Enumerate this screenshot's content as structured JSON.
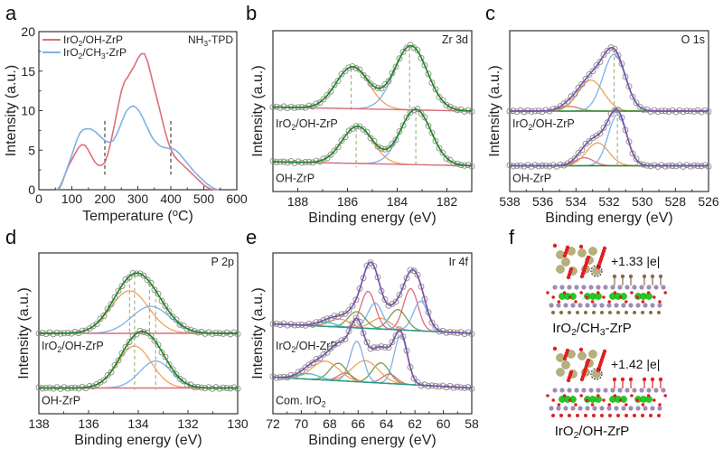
{
  "figure": {
    "panels": [
      "a",
      "b",
      "c",
      "d",
      "e",
      "f"
    ]
  },
  "chart_data": [
    {
      "id": "a",
      "type": "line",
      "title": "",
      "annotation": "NH3-TPD",
      "annotation_sub": {
        "pre": "NH",
        "sub": "3",
        "post": "-TPD"
      },
      "xlabel": "Temperature (oC)",
      "xlabel_parts": {
        "pre": "Temperature (",
        "sup": "o",
        "post": "C)"
      },
      "ylabel": "Intensity (a.u.)",
      "xlim": [
        0,
        600
      ],
      "ylim": [
        0,
        20
      ],
      "xticks": [
        0,
        100,
        200,
        300,
        400,
        500,
        600
      ],
      "yticks": [
        0,
        5,
        10,
        15,
        20
      ],
      "legend_position": "top-left",
      "vlines": [
        200,
        400
      ],
      "series": [
        {
          "name": "IrO2/OH-ZrP",
          "name_parts": {
            "pre": "IrO",
            "sub": "2",
            "post": "/OH-ZrP"
          },
          "color": "#d9707a",
          "x": [
            60,
            70,
            80,
            90,
            100,
            110,
            120,
            130,
            140,
            150,
            160,
            170,
            180,
            190,
            200,
            210,
            220,
            230,
            240,
            250,
            260,
            270,
            280,
            290,
            300,
            310,
            320,
            330,
            340,
            350,
            360,
            370,
            380,
            390,
            400,
            410,
            420,
            430,
            440,
            450,
            460,
            470,
            480,
            490,
            500,
            510,
            520,
            530,
            540
          ],
          "y": [
            0,
            0.8,
            2.0,
            3.0,
            3.8,
            4.6,
            5.3,
            5.7,
            5.6,
            5.0,
            4.2,
            3.5,
            3.1,
            3.1,
            3.4,
            4.6,
            6.4,
            8.4,
            10.5,
            12.5,
            13.7,
            14.3,
            15.0,
            15.7,
            16.6,
            17.2,
            17.2,
            16.2,
            14.5,
            12.8,
            11.2,
            9.5,
            7.8,
            6.3,
            5.1,
            4.3,
            3.8,
            3.4,
            3.0,
            2.6,
            2.2,
            1.8,
            1.4,
            1.0,
            0.6,
            0.3,
            0.1,
            0.0,
            0.0
          ]
        },
        {
          "name": "IrO2/CH3-ZrP",
          "name_parts": {
            "pre": "IrO",
            "sub": "2",
            "post": "/CH",
            "sub2": "3",
            "post2": "-ZrP"
          },
          "color": "#7fb0e6",
          "x": [
            55,
            65,
            75,
            85,
            95,
            105,
            115,
            125,
            135,
            145,
            155,
            165,
            175,
            185,
            195,
            205,
            215,
            225,
            235,
            245,
            255,
            265,
            275,
            285,
            295,
            305,
            315,
            325,
            335,
            345,
            355,
            365,
            375,
            385,
            395,
            405,
            415,
            425,
            435,
            445,
            455,
            465,
            475,
            485,
            495,
            505,
            515,
            525,
            535,
            545
          ],
          "y": [
            0,
            0.5,
            1.5,
            2.6,
            3.8,
            5.0,
            6.3,
            7.2,
            7.6,
            7.7,
            7.7,
            7.5,
            7.2,
            6.8,
            6.4,
            6.1,
            6.0,
            6.2,
            6.9,
            7.9,
            9.0,
            9.9,
            10.4,
            10.6,
            10.4,
            9.9,
            9.1,
            8.2,
            7.3,
            6.5,
            6.0,
            5.6,
            5.4,
            5.3,
            5.2,
            5.2,
            5.0,
            4.6,
            4.1,
            3.6,
            3.1,
            2.6,
            2.1,
            1.7,
            1.3,
            0.9,
            0.6,
            0.3,
            0.1,
            0.0
          ]
        }
      ]
    },
    {
      "id": "b",
      "type": "line",
      "subtype": "xps-fit",
      "annotation": "Zr 3d",
      "xlabel": "Binding energy (eV)",
      "ylabel": "Intensity (a.u.)",
      "xlim": [
        189,
        181
      ],
      "xticks": [
        188,
        186,
        184,
        182
      ],
      "minor_xticks": [
        189,
        187,
        185,
        183,
        181
      ],
      "series_colors": {
        "data": "#8c8c8c",
        "envelope": "#1e8a1e",
        "background": "#d9707a",
        "components": [
          "#f0a05a",
          "#7fb0e6"
        ]
      },
      "spectra": [
        {
          "label": "IrO2/OH-ZrP",
          "label_parts": {
            "pre": "IrO",
            "sub": "2",
            "post": "/OH-ZrP"
          },
          "offset": 1.0,
          "baseline": [
            0.06,
            0.0
          ],
          "peaks": [
            {
              "center": 185.8,
              "height": 0.62,
              "fwhm": 1.55,
              "color": "#f0a05a"
            },
            {
              "center": 183.45,
              "height": 0.95,
              "fwhm": 1.55,
              "color": "#7fb0e6"
            }
          ],
          "marker_lines": [
            185.85,
            183.5
          ]
        },
        {
          "label": "OH-ZrP",
          "label_parts": {
            "pre": "OH-ZrP"
          },
          "offset": 0.0,
          "baseline": [
            0.06,
            0.0
          ],
          "peaks": [
            {
              "center": 185.6,
              "height": 0.55,
              "fwhm": 1.45,
              "color": "#f0a05a"
            },
            {
              "center": 183.25,
              "height": 0.82,
              "fwhm": 1.45,
              "color": "#7fb0e6"
            }
          ],
          "marker_lines": [
            185.65,
            183.25
          ]
        }
      ]
    },
    {
      "id": "c",
      "type": "line",
      "subtype": "xps-fit",
      "annotation": "O 1s",
      "xlabel": "Binding energy (eV)",
      "ylabel": "Intensity (a.u.)",
      "xlim": [
        538,
        526
      ],
      "xticks": [
        538,
        536,
        534,
        532,
        530,
        528,
        526
      ],
      "minor_xticks": [
        537,
        535,
        533,
        531,
        529,
        527
      ],
      "series_colors": {
        "data": "#8c8c8c",
        "envelope": "#7b52ab",
        "background": "#1e8a1e",
        "components": [
          "#d9707a",
          "#f0a05a",
          "#7fb0e6"
        ]
      },
      "spectra": [
        {
          "label": "IrO2/OH-ZrP",
          "label_parts": {
            "pre": "IrO",
            "sub": "2",
            "post": "/OH-ZrP"
          },
          "offset": 1.0,
          "baseline": [
            0.0,
            0.0
          ],
          "peaks": [
            {
              "center": 534.4,
              "height": 0.07,
              "fwhm": 1.4,
              "color": "#d9707a"
            },
            {
              "center": 533.1,
              "height": 0.46,
              "fwhm": 1.8,
              "color": "#f0a05a"
            },
            {
              "center": 531.7,
              "height": 0.84,
              "fwhm": 1.6,
              "color": "#7fb0e6"
            }
          ],
          "marker_lines": [
            531.7
          ]
        },
        {
          "label": "OH-ZrP",
          "label_parts": {
            "pre": "OH-ZrP"
          },
          "offset": 0.0,
          "baseline": [
            0.0,
            0.0
          ],
          "peaks": [
            {
              "center": 533.5,
              "height": 0.12,
              "fwhm": 1.3,
              "color": "#d9707a"
            },
            {
              "center": 532.7,
              "height": 0.34,
              "fwhm": 1.6,
              "color": "#f0a05a"
            },
            {
              "center": 531.5,
              "height": 0.76,
              "fwhm": 1.3,
              "color": "#7fb0e6"
            }
          ],
          "marker_lines": [
            531.5
          ]
        }
      ]
    },
    {
      "id": "d",
      "type": "line",
      "subtype": "xps-fit",
      "annotation": "P 2p",
      "xlabel": "Binding energy (eV)",
      "ylabel": "Intensity (a.u.)",
      "xlim": [
        138,
        130
      ],
      "xticks": [
        138,
        136,
        134,
        132,
        130
      ],
      "minor_xticks": [
        137,
        135,
        133,
        131
      ],
      "series_colors": {
        "data": "#8c8c8c",
        "envelope": "#1e8a1e",
        "background": "#d9707a",
        "components": [
          "#f0a05a",
          "#7fb0e6"
        ]
      },
      "spectra": [
        {
          "label": "IrO2/OH-ZrP",
          "label_parts": {
            "pre": "IrO",
            "sub": "2",
            "post": "/OH-ZrP"
          },
          "offset": 1.0,
          "baseline": [
            0.0,
            0.0
          ],
          "peaks": [
            {
              "center": 134.35,
              "height": 0.63,
              "fwhm": 1.8,
              "color": "#f0a05a"
            },
            {
              "center": 133.5,
              "height": 0.4,
              "fwhm": 1.8,
              "color": "#7fb0e6"
            }
          ],
          "marker_lines": [
            134.35,
            134.15,
            133.55,
            133.3
          ]
        },
        {
          "label": "OH-ZrP",
          "label_parts": {
            "pre": "OH-ZrP"
          },
          "offset": 0.0,
          "baseline": [
            0.0,
            0.0
          ],
          "peaks": [
            {
              "center": 134.15,
              "height": 0.62,
              "fwhm": 1.6,
              "color": "#f0a05a"
            },
            {
              "center": 133.3,
              "height": 0.4,
              "fwhm": 1.5,
              "color": "#7fb0e6"
            }
          ],
          "marker_lines": [
            134.15,
            133.3
          ]
        }
      ]
    },
    {
      "id": "e",
      "type": "line",
      "subtype": "xps-fit",
      "annotation": "Ir 4f",
      "xlabel": "Binding energy (eV)",
      "ylabel": "Intensity (a.u.)",
      "xlim": [
        72,
        58
      ],
      "xticks": [
        72,
        70,
        68,
        66,
        64,
        62,
        60,
        58
      ],
      "minor_xticks": [
        71,
        69,
        67,
        65,
        63,
        61,
        59
      ],
      "series_colors": {
        "data": "#8c8c8c",
        "envelope": "#7b52ab",
        "background": "#2a9a8a",
        "components": [
          "#d9707a",
          "#7fb0e6",
          "#7a9a50",
          "#f0a05a",
          "#40c0d0"
        ]
      },
      "spectra": [
        {
          "label": "IrO2/OH-ZrP",
          "label_parts": {
            "pre": "IrO",
            "sub": "2",
            "post": "/OH-ZrP"
          },
          "offset": 1.0,
          "baseline": [
            0.14,
            0.0
          ],
          "peaks": [
            {
              "center": 62.3,
              "height": 0.62,
              "fwhm": 1.2,
              "color": "#d9707a"
            },
            {
              "center": 61.6,
              "height": 0.44,
              "fwhm": 1.2,
              "color": "#7fb0e6"
            },
            {
              "center": 63.2,
              "height": 0.3,
              "fwhm": 1.4,
              "color": "#7a9a50"
            },
            {
              "center": 64.4,
              "height": 0.16,
              "fwhm": 1.6,
              "color": "#f0a05a"
            },
            {
              "center": 65.3,
              "height": 0.55,
              "fwhm": 1.2,
              "color": "#d9707a"
            },
            {
              "center": 64.8,
              "height": 0.38,
              "fwhm": 1.2,
              "color": "#7fb0e6"
            },
            {
              "center": 66.1,
              "height": 0.24,
              "fwhm": 1.4,
              "color": "#7a9a50"
            },
            {
              "center": 67.3,
              "height": 0.12,
              "fwhm": 1.6,
              "color": "#f0a05a"
            },
            {
              "center": 68.3,
              "height": 0.06,
              "fwhm": 1.6,
              "color": "#40c0d0"
            }
          ],
          "marker_lines": []
        },
        {
          "label": "Com. IrO2",
          "label_parts": {
            "pre": "Com. IrO",
            "sub": "2",
            "post": ""
          },
          "offset": 0.0,
          "baseline": [
            0.16,
            0.0
          ],
          "peaks": [
            {
              "center": 63.0,
              "height": 0.72,
              "fwhm": 1.1,
              "color": "#7fb0e6"
            },
            {
              "center": 63.8,
              "height": 0.14,
              "fwhm": 1.2,
              "color": "#d9707a"
            },
            {
              "center": 64.4,
              "height": 0.3,
              "fwhm": 1.4,
              "color": "#7a9a50"
            },
            {
              "center": 65.5,
              "height": 0.32,
              "fwhm": 2.2,
              "color": "#f0a05a"
            },
            {
              "center": 66.1,
              "height": 0.6,
              "fwhm": 1.1,
              "color": "#7fb0e6"
            },
            {
              "center": 66.9,
              "height": 0.12,
              "fwhm": 1.2,
              "color": "#d9707a"
            },
            {
              "center": 67.4,
              "height": 0.26,
              "fwhm": 1.4,
              "color": "#7a9a50"
            },
            {
              "center": 68.3,
              "height": 0.28,
              "fwhm": 2.2,
              "color": "#f0a05a"
            },
            {
              "center": 69.5,
              "height": 0.08,
              "fwhm": 1.8,
              "color": "#40c0d0"
            }
          ],
          "marker_lines": []
        }
      ]
    }
  ],
  "structures": {
    "top": {
      "label": "IrO2/CH3-ZrP",
      "label_parts": {
        "pre": "IrO",
        "sub": "2",
        "post": "/CH",
        "sub2": "3",
        "post2": "-ZrP"
      },
      "charge": "+1.33 |e|",
      "terminal_group": "CH3"
    },
    "bottom": {
      "label": "IrO2/OH-ZrP",
      "label_parts": {
        "pre": "IrO",
        "sub": "2",
        "post": "/OH-ZrP"
      },
      "charge": "+1.42 |e|",
      "terminal_group": "OH"
    },
    "atom_colors": {
      "O": "#e02020",
      "Ir": "#b8b07a",
      "Zr": "#22cc22",
      "P": "#a08cb0",
      "C": "#8a6a4a",
      "H": "#f0d8d0"
    }
  }
}
